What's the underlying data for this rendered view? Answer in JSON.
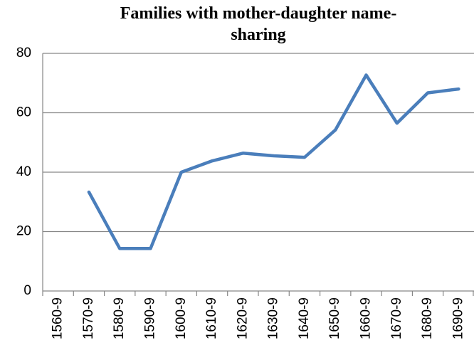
{
  "chart_data": {
    "type": "line",
    "title": "Families with mother-daughter name-sharing",
    "categories": [
      "1560-9",
      "1570-9",
      "1580-9",
      "1590-9",
      "1600-9",
      "1610-9",
      "1620-9",
      "1630-9",
      "1640-9",
      "1650-9",
      "1660-9",
      "1670-9",
      "1680-9",
      "1690-9"
    ],
    "values": [
      null,
      33.3,
      14.3,
      14.3,
      40,
      43.8,
      46.4,
      45.5,
      45,
      54.2,
      72.7,
      56.5,
      66.7,
      68
    ],
    "color": "#4a7ebb",
    "ylim": [
      0,
      80
    ],
    "yticks": [
      0,
      20,
      40,
      60,
      80
    ],
    "grid": true
  }
}
